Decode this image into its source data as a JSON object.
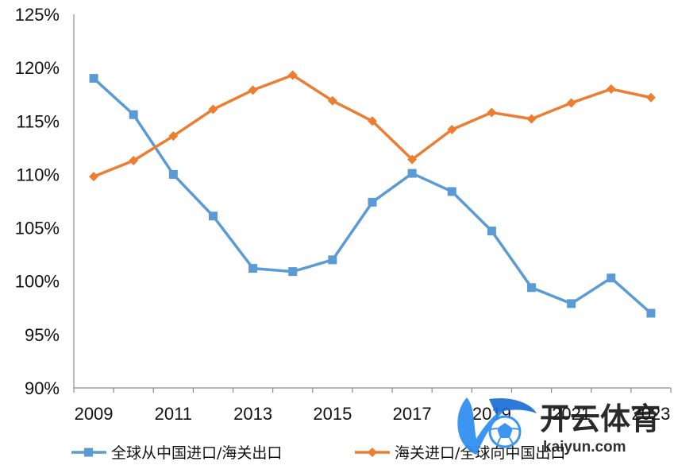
{
  "chart_data": {
    "type": "line",
    "title": "",
    "xlabel": "",
    "ylabel": "",
    "x": [
      2009,
      2010,
      2011,
      2012,
      2013,
      2014,
      2015,
      2016,
      2017,
      2018,
      2019,
      2020,
      2021,
      2022,
      2023
    ],
    "x_tick_labels": [
      "2009",
      "2011",
      "2013",
      "2015",
      "2017",
      "2019",
      "2021",
      "2023"
    ],
    "y_tick_labels": [
      "90%",
      "95%",
      "100%",
      "105%",
      "110%",
      "115%",
      "120%",
      "125%"
    ],
    "ylim": [
      90,
      125
    ],
    "y_unit": "%",
    "grid": false,
    "legend_position": "bottom",
    "series": [
      {
        "name": "全球从中国进口/海关出口",
        "color": "#5b9bd5",
        "marker": "square",
        "values": [
          119.0,
          115.6,
          110.0,
          106.1,
          101.2,
          100.9,
          102.0,
          107.4,
          110.1,
          108.4,
          104.7,
          99.4,
          97.9,
          100.3,
          97.0
        ]
      },
      {
        "name": "海关进口/全球向中国出口",
        "color": "#ed7d31",
        "marker": "diamond",
        "values": [
          109.8,
          111.3,
          113.6,
          116.1,
          117.9,
          119.3,
          116.9,
          115.0,
          111.4,
          114.2,
          115.8,
          115.2,
          116.7,
          118.0,
          117.2
        ]
      }
    ]
  },
  "watermark": {
    "brand_text": "开云体育",
    "brand_url": "kaiyun.com"
  }
}
